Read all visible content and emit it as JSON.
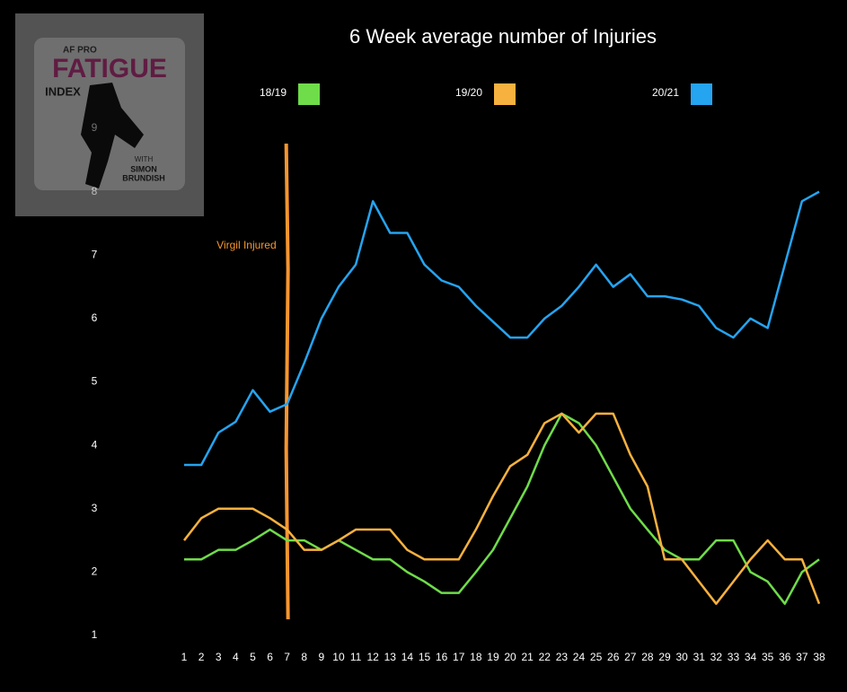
{
  "chart_data": {
    "type": "line",
    "title": "6 Week average number of Injuries",
    "categories": [
      "1",
      "2",
      "3",
      "4",
      "5",
      "6",
      "7",
      "8",
      "9",
      "10",
      "11",
      "12",
      "13",
      "14",
      "15",
      "16",
      "17",
      "18",
      "19",
      "20",
      "21",
      "22",
      "23",
      "24",
      "25",
      "26",
      "27",
      "28",
      "29",
      "30",
      "31",
      "32",
      "33",
      "34",
      "35",
      "36",
      "37",
      "38"
    ],
    "series": [
      {
        "name": "18/19",
        "color": "#6fdc4a",
        "values": [
          2.2,
          2.2,
          2.35,
          2.35,
          2.5,
          2.67,
          2.5,
          2.5,
          2.35,
          2.5,
          2.35,
          2.2,
          2.2,
          2.0,
          1.85,
          1.67,
          1.67,
          2.0,
          2.35,
          2.85,
          3.35,
          4.0,
          4.5,
          4.35,
          4.0,
          3.5,
          3.0,
          2.67,
          2.35,
          2.2,
          2.2,
          2.5,
          2.5,
          2.0,
          1.85,
          1.5,
          2.0,
          2.2
        ]
      },
      {
        "name": "19/20",
        "color": "#f7b13e",
        "values": [
          2.5,
          2.85,
          3.0,
          3.0,
          3.0,
          2.85,
          2.67,
          2.35,
          2.35,
          2.5,
          2.67,
          2.67,
          2.67,
          2.35,
          2.2,
          2.2,
          2.2,
          2.67,
          3.2,
          3.67,
          3.85,
          4.35,
          4.5,
          4.2,
          4.5,
          4.5,
          3.85,
          3.35,
          2.2,
          2.2,
          1.85,
          1.5,
          1.85,
          2.2,
          2.5,
          2.2,
          2.2,
          1.5
        ]
      },
      {
        "name": "20/21",
        "color": "#25a4f0",
        "values": [
          3.69,
          3.69,
          4.2,
          4.37,
          4.87,
          4.53,
          4.65,
          5.3,
          6.0,
          6.5,
          6.85,
          7.85,
          7.35,
          7.35,
          6.85,
          6.6,
          6.5,
          6.2,
          5.95,
          5.7,
          5.7,
          6.0,
          6.2,
          6.5,
          6.85,
          6.5,
          6.7,
          6.35,
          6.35,
          6.3,
          6.2,
          5.85,
          5.7,
          6.0,
          5.85,
          6.85,
          7.85,
          8.0
        ]
      }
    ],
    "ylim": [
      1,
      9
    ],
    "yticks": [
      1,
      2,
      3,
      4,
      5,
      6,
      7,
      8,
      9
    ],
    "annotation": "Virgil Injured",
    "annotation_color": "#f7962f"
  },
  "logo": {
    "brand": "AF PRO",
    "line1": "FATIGUE",
    "line2": "INDEX",
    "line3": "WITH",
    "line4": "SIMON",
    "line5": "BRUNDISH"
  }
}
